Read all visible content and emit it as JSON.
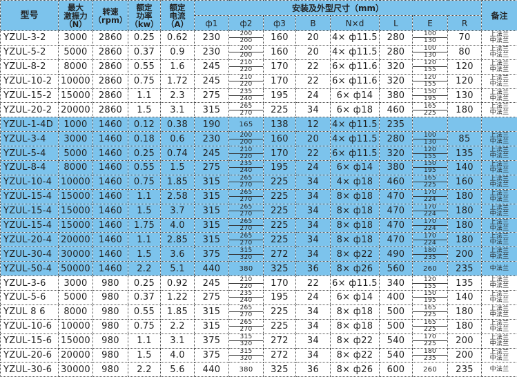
{
  "colors": {
    "header_bg": "#7cc3ec",
    "highlight_row_bg": "#7cc3ec"
  },
  "header": {
    "model": "型号",
    "force": [
      "最大",
      "激振力",
      "（N）"
    ],
    "speed": [
      "转速",
      "（rpm）"
    ],
    "power": [
      "额定",
      "功率",
      "（kw）"
    ],
    "current": [
      "额定",
      "电流",
      "（A）"
    ],
    "dims_group": "安装及外型尺寸（mm）",
    "remark": "备注",
    "dims": [
      "ф1",
      "ф2",
      "ф3",
      "B",
      "N×d",
      "L",
      "E",
      "R"
    ]
  },
  "rows": [
    {
      "model": "YZUL-3-2",
      "force": "3000",
      "speed": "2860",
      "power": "0.25",
      "current": "0.62",
      "d1": "230",
      "d2": [
        "200",
        "200"
      ],
      "d3": "160",
      "B": "20",
      "Nd": "4× ф11.5",
      "L": "280",
      "E": [
        "100",
        "130"
      ],
      "R": "70",
      "remark": [
        "上法兰",
        "中法兰"
      ],
      "highlight": false
    },
    {
      "model": "YZUL-5-2",
      "force": "5000",
      "speed": "2860",
      "power": "0.37",
      "current": "0.9",
      "d1": "230",
      "d2": [
        "200",
        "200"
      ],
      "d3": "160",
      "B": "20",
      "Nd": "4× ф11.5",
      "L": "280",
      "E": [
        "100",
        "130"
      ],
      "R": "80",
      "remark": [
        "上法兰",
        "中法兰"
      ],
      "highlight": false
    },
    {
      "model": "YZUL-8-2",
      "force": "8000",
      "speed": "2860",
      "power": "0.55",
      "current": "1.6",
      "d1": "245",
      "d2": [
        "210",
        "220"
      ],
      "d3": "170",
      "B": "22",
      "Nd": "6× ф11.6",
      "L": "320",
      "E": [
        "120",
        "155"
      ],
      "R": "120",
      "remark": [
        "上法兰",
        "中法兰"
      ],
      "highlight": false
    },
    {
      "model": "YZUL-10-2",
      "force": "10000",
      "speed": "2860",
      "power": "0.75",
      "current": "1.72",
      "d1": "245",
      "d2": [
        "210",
        "220"
      ],
      "d3": "170",
      "B": "22",
      "Nd": "6× ф11.6",
      "L": "320",
      "E": [
        "120",
        "155"
      ],
      "R": "120",
      "remark": [
        "上法兰",
        "中法兰"
      ],
      "highlight": false
    },
    {
      "model": "YZUL-15-2",
      "force": "15000",
      "speed": "2860",
      "power": "1.1",
      "current": "2.3",
      "d1": "275",
      "d2": [
        "235",
        "240"
      ],
      "d3": "195",
      "B": "24",
      "Nd": "6× ф14",
      "L": "380",
      "E": [
        "150",
        "195"
      ],
      "R": "130",
      "remark": [
        "上法兰",
        "中法兰"
      ],
      "highlight": false
    },
    {
      "model": "YZUL-20-2",
      "force": "20000",
      "speed": "2860",
      "power": "1.5",
      "current": "3.1",
      "d1": "315",
      "d2": [
        "265",
        "270"
      ],
      "d3": "225",
      "B": "34",
      "Nd": "6× ф18",
      "L": "460",
      "E": [
        "165",
        "225"
      ],
      "R": "180",
      "remark": [
        "上法兰",
        "中法兰"
      ],
      "highlight": false
    },
    {
      "model": "YZUL-1-4D",
      "force": "1000",
      "speed": "1460",
      "power": "0.12",
      "current": "0.38",
      "d1": "190",
      "d2": [
        "165"
      ],
      "d3": "138",
      "B": "12",
      "Nd": "4× ф11.5",
      "L": "235",
      "E": [],
      "R": "",
      "remark": [],
      "highlight": true
    },
    {
      "model": "YZUL-3-4",
      "force": "3000",
      "speed": "1460",
      "power": "0.18",
      "current": "0.6",
      "d1": "230",
      "d2": [
        "200",
        "200"
      ],
      "d3": "160",
      "B": "20",
      "Nd": "4× ф11.5",
      "L": "280",
      "E": [
        "100",
        "130"
      ],
      "R": "85",
      "remark": [
        "上法兰",
        "中法兰"
      ],
      "highlight": true
    },
    {
      "model": "YZUL-5-4",
      "force": "5000",
      "speed": "1460",
      "power": "0.25",
      "current": "0.74",
      "d1": "245",
      "d2": [
        "210",
        "220"
      ],
      "d3": "170",
      "B": "22",
      "Nd": "6× ф11.5",
      "L": "320",
      "E": [
        "120",
        "155"
      ],
      "R": "135",
      "remark": [
        "上法兰",
        "中法兰"
      ],
      "highlight": true
    },
    {
      "model": "YZUL-8-4",
      "force": "8000",
      "speed": "1460",
      "power": "0.55",
      "current": "1.5",
      "d1": "275",
      "d2": [
        "235",
        "240"
      ],
      "d3": "195",
      "B": "24",
      "Nd": "6× ф14",
      "L": "380",
      "E": [
        "150",
        "195"
      ],
      "R": "140",
      "remark": [
        "上法兰",
        "中法兰"
      ],
      "highlight": true
    },
    {
      "model": "YZUL-10-4",
      "force": "10000",
      "speed": "1460",
      "power": "0.75",
      "current": "1.85",
      "d1": "315",
      "d2": [
        "265",
        "270"
      ],
      "d3": "225",
      "B": "34",
      "Nd": "4× ф18",
      "L": "460",
      "E": [
        "165",
        "225"
      ],
      "R": "160",
      "remark": [
        "上法兰",
        "中法兰"
      ],
      "highlight": true
    },
    {
      "model": "YZUL-15-4",
      "force": "15000",
      "speed": "1460",
      "power": "1.1",
      "current": "2.58",
      "d1": "315",
      "d2": [
        "265",
        "270"
      ],
      "d3": "225",
      "B": "34",
      "Nd": "8× ф18",
      "L": "470",
      "E": [
        "170",
        "224"
      ],
      "R": "180",
      "remark": [
        "上法兰",
        "中法兰"
      ],
      "highlight": true
    },
    {
      "model": "YZUL-15-4",
      "force": "15000",
      "speed": "1460",
      "power": "1.5",
      "current": "3.7",
      "d1": "315",
      "d2": [
        "265",
        "270"
      ],
      "d3": "225",
      "B": "34",
      "Nd": "8× ф18",
      "L": "470",
      "E": [
        "170",
        "224"
      ],
      "R": "180",
      "remark": [
        "上法兰",
        "中法兰"
      ],
      "highlight": true
    },
    {
      "model": "YZUL-15-4",
      "force": "15000",
      "speed": "1460",
      "power": "1.75",
      "current": "4.0",
      "d1": "315",
      "d2": [
        "265",
        "270"
      ],
      "d3": "225",
      "B": "34",
      "Nd": "8× ф18",
      "L": "470",
      "E": [
        "170",
        "224"
      ],
      "R": "180",
      "remark": [
        "上法兰",
        "中法兰"
      ],
      "highlight": true
    },
    {
      "model": "YZUL-20-4",
      "force": "20000",
      "speed": "1460",
      "power": "1.1",
      "current": "2.85",
      "d1": "315",
      "d2": [
        "265",
        "270"
      ],
      "d3": "225",
      "B": "34",
      "Nd": "8× ф18",
      "L": "470",
      "E": [
        "170",
        "224"
      ],
      "R": "180",
      "remark": [
        "上法兰",
        "中法兰"
      ],
      "highlight": true
    },
    {
      "model": "YZUL-30-4",
      "force": "30000",
      "speed": "1460",
      "power": "1.5",
      "current": "3.6",
      "d1": "375",
      "d2": [
        "315",
        "320"
      ],
      "d3": "272",
      "B": "34",
      "Nd": "8× ф22",
      "L": "490",
      "E": [
        "180",
        "235"
      ],
      "R": "200",
      "remark": [
        "上法兰",
        "中法兰"
      ],
      "highlight": true
    },
    {
      "model": "YZUL-50-4",
      "force": "50000",
      "speed": "1460",
      "power": "2.2",
      "current": "5.1",
      "d1": "440",
      "d2": [
        "380"
      ],
      "d3": "325",
      "B": "36",
      "Nd": "8× ф26",
      "L": "560",
      "E": [
        "260"
      ],
      "R": "235",
      "remark": [
        "中法兰"
      ],
      "highlight": true
    },
    {
      "model": "YZUL-3-6",
      "force": "3000",
      "speed": "980",
      "power": "0.25",
      "current": "0.92",
      "d1": "245",
      "d2": [
        "210",
        "220"
      ],
      "d3": "170",
      "B": "22",
      "Nd": "6× ф11.5",
      "L": "340",
      "E": [
        "120",
        "155"
      ],
      "R": "135",
      "remark": [
        "上法兰",
        "中法兰"
      ],
      "highlight": false
    },
    {
      "model": "YZUL-5-6",
      "force": "5000",
      "speed": "980",
      "power": "0.37",
      "current": "1.22",
      "d1": "275",
      "d2": [
        "235",
        "240"
      ],
      "d3": "195",
      "B": "24",
      "Nd": "6× ф14",
      "L": "400",
      "E": [
        "150",
        "195"
      ],
      "R": "140",
      "remark": [
        "上法兰",
        "中法兰"
      ],
      "highlight": false
    },
    {
      "model": "YZUL 8 6",
      "force": "8000",
      "speed": "980",
      "power": "0.55",
      "current": "1.85",
      "d1": "315",
      "d2": [
        "265",
        "270"
      ],
      "d3": "225",
      "B": "34",
      "Nd": "8× ф18",
      "L": "500",
      "E": [
        "165",
        "225"
      ],
      "R": "180",
      "remark": [
        "上法兰",
        "中法兰"
      ],
      "highlight": false
    },
    {
      "model": "YZUL-10-6",
      "force": "10000",
      "speed": "980",
      "power": "0.75",
      "current": "2.2",
      "d1": "315",
      "d2": [
        "265",
        "270"
      ],
      "d3": "225",
      "B": "34",
      "Nd": "8× ф18",
      "L": "500",
      "E": [
        "165",
        "225"
      ],
      "R": "180",
      "remark": [
        "上法兰",
        "中法兰"
      ],
      "highlight": false
    },
    {
      "model": "YZUL-15-6",
      "force": "15000",
      "speed": "980",
      "power": "1.1",
      "current": "3.1",
      "d1": "375",
      "d2": [
        "315",
        "320"
      ],
      "d3": "272",
      "B": "34",
      "Nd": "8× ф22",
      "L": "540",
      "E": [
        "170",
        "225"
      ],
      "R": "200",
      "remark": [
        "上法兰",
        "中法兰"
      ],
      "highlight": false
    },
    {
      "model": "YZUL-20-6",
      "force": "20000",
      "speed": "980",
      "power": "1.5",
      "current": "4.0",
      "d1": "375",
      "d2": [
        "315",
        "320"
      ],
      "d3": "272",
      "B": "34",
      "Nd": "8× ф22",
      "L": "540",
      "E": [
        "180",
        "235"
      ],
      "R": "200",
      "remark": [
        "上法兰",
        "中法兰"
      ],
      "highlight": false
    },
    {
      "model": "YZUL-30-6",
      "force": "30000",
      "speed": "980",
      "power": "2.2",
      "current": "5.6",
      "d1": "440",
      "d2": [
        "380"
      ],
      "d3": "325",
      "B": "36",
      "Nd": "8× ф26",
      "L": "600",
      "E": [
        "260"
      ],
      "R": "235",
      "remark": [
        "中法兰"
      ],
      "highlight": false
    }
  ]
}
